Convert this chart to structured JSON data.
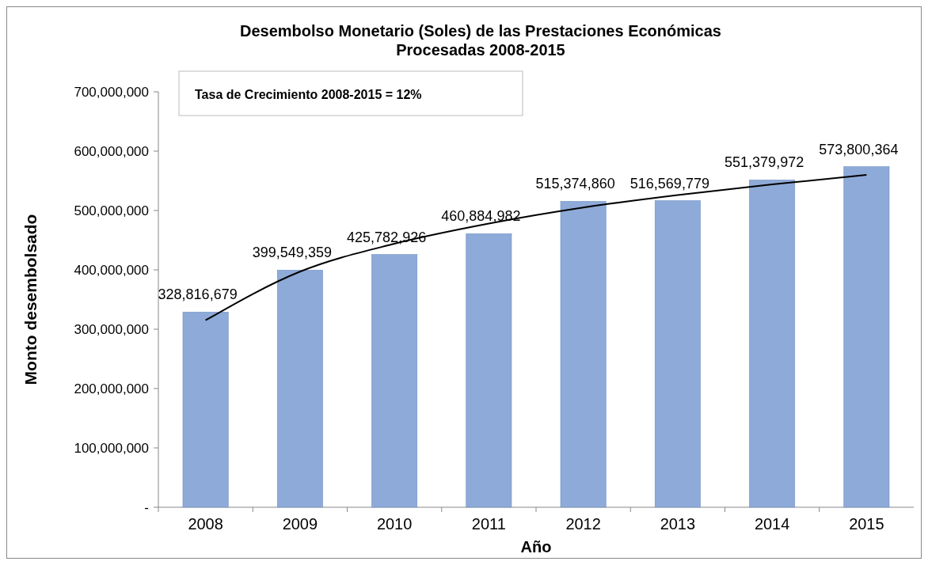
{
  "chart_data": {
    "type": "bar",
    "title": "Desembolso Monetario (Soles) de las Prestaciones Económicas Procesadas 2008-2015",
    "xlabel": "Año",
    "ylabel": "Monto desembolsado",
    "categories": [
      "2008",
      "2009",
      "2010",
      "2011",
      "2012",
      "2013",
      "2014",
      "2015"
    ],
    "series": [
      {
        "color": "#8eaad8",
        "values": [
          328816679,
          399549359,
          425782926,
          460884982,
          515374860,
          516569779,
          551379972,
          573800364
        ],
        "value_labels": [
          "328,816,679",
          "399,549,359",
          "425,782,926",
          "460,884,982",
          "515,374,860",
          "516,569,779",
          "551,379,972",
          "573,800,364"
        ]
      },
      {
        "type": "line",
        "color": "#000000",
        "values": [
          315000000,
          397000000,
          444000000,
          478000000,
          505000000,
          526000000,
          544000000,
          560000000
        ]
      }
    ],
    "annotations": [
      "Tasa de Crecimiento 2008-2015 = 12%"
    ],
    "ylim": [
      0,
      700000000
    ],
    "yticks": [
      {
        "value": 0,
        "label": "-"
      },
      {
        "value": 100000000,
        "label": "100,000,000"
      },
      {
        "value": 200000000,
        "label": "200,000,000"
      },
      {
        "value": 300000000,
        "label": "300,000,000"
      },
      {
        "value": 400000000,
        "label": "400,000,000"
      },
      {
        "value": 500000000,
        "label": "500,000,000"
      },
      {
        "value": 600000000,
        "label": "600,000,000"
      },
      {
        "value": 700000000,
        "label": "700,000,000"
      }
    ],
    "grid": false
  }
}
